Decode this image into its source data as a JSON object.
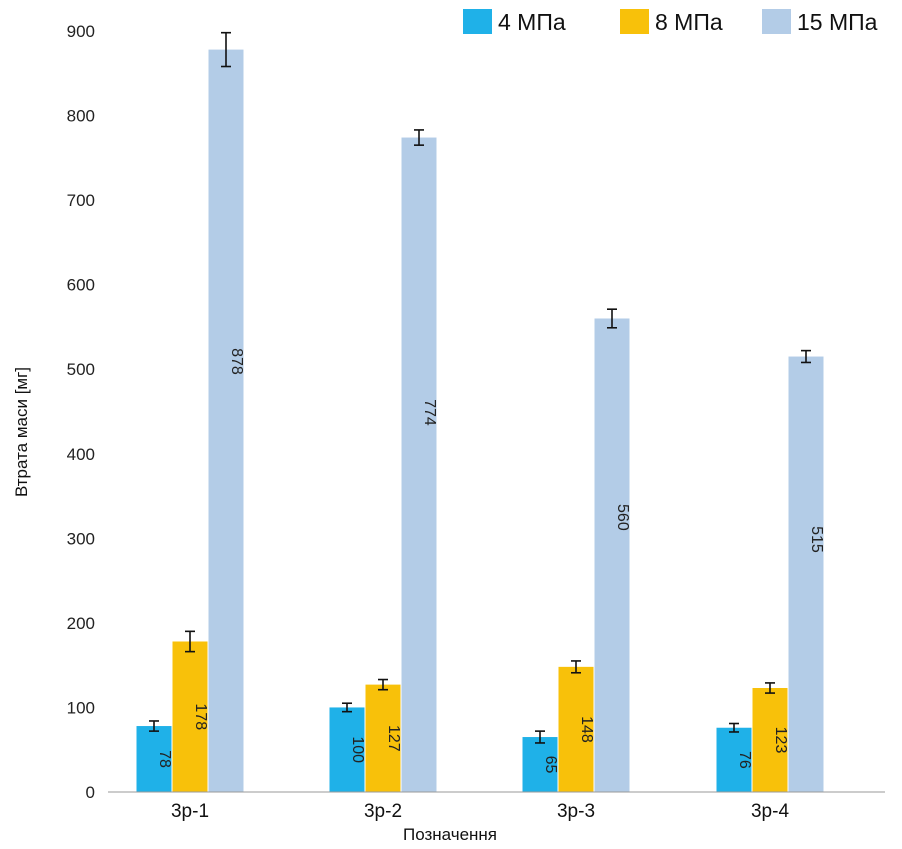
{
  "chart_data": {
    "type": "bar",
    "title": "",
    "xlabel": "Позначення",
    "ylabel": "Втрата маси [мг]",
    "categories": [
      "3р-1",
      "3р-2",
      "3р-3",
      "3р-4"
    ],
    "ylim": [
      0,
      900
    ],
    "yticks": [
      0,
      100,
      200,
      300,
      400,
      500,
      600,
      700,
      800,
      900
    ],
    "grid": false,
    "legend_position": "top-right",
    "series": [
      {
        "name": "4 МПа",
        "color": "#1fb1e8",
        "values": [
          78,
          100,
          65,
          76
        ],
        "errors": [
          6,
          5,
          7,
          5
        ]
      },
      {
        "name": "8 МПа",
        "color": "#f8c10a",
        "values": [
          178,
          127,
          148,
          123
        ],
        "errors": [
          12,
          6,
          7,
          6
        ]
      },
      {
        "name": "15 МПа",
        "color": "#b3cce7",
        "values": [
          878,
          774,
          560,
          515
        ],
        "errors": [
          20,
          9,
          11,
          7
        ]
      }
    ]
  }
}
